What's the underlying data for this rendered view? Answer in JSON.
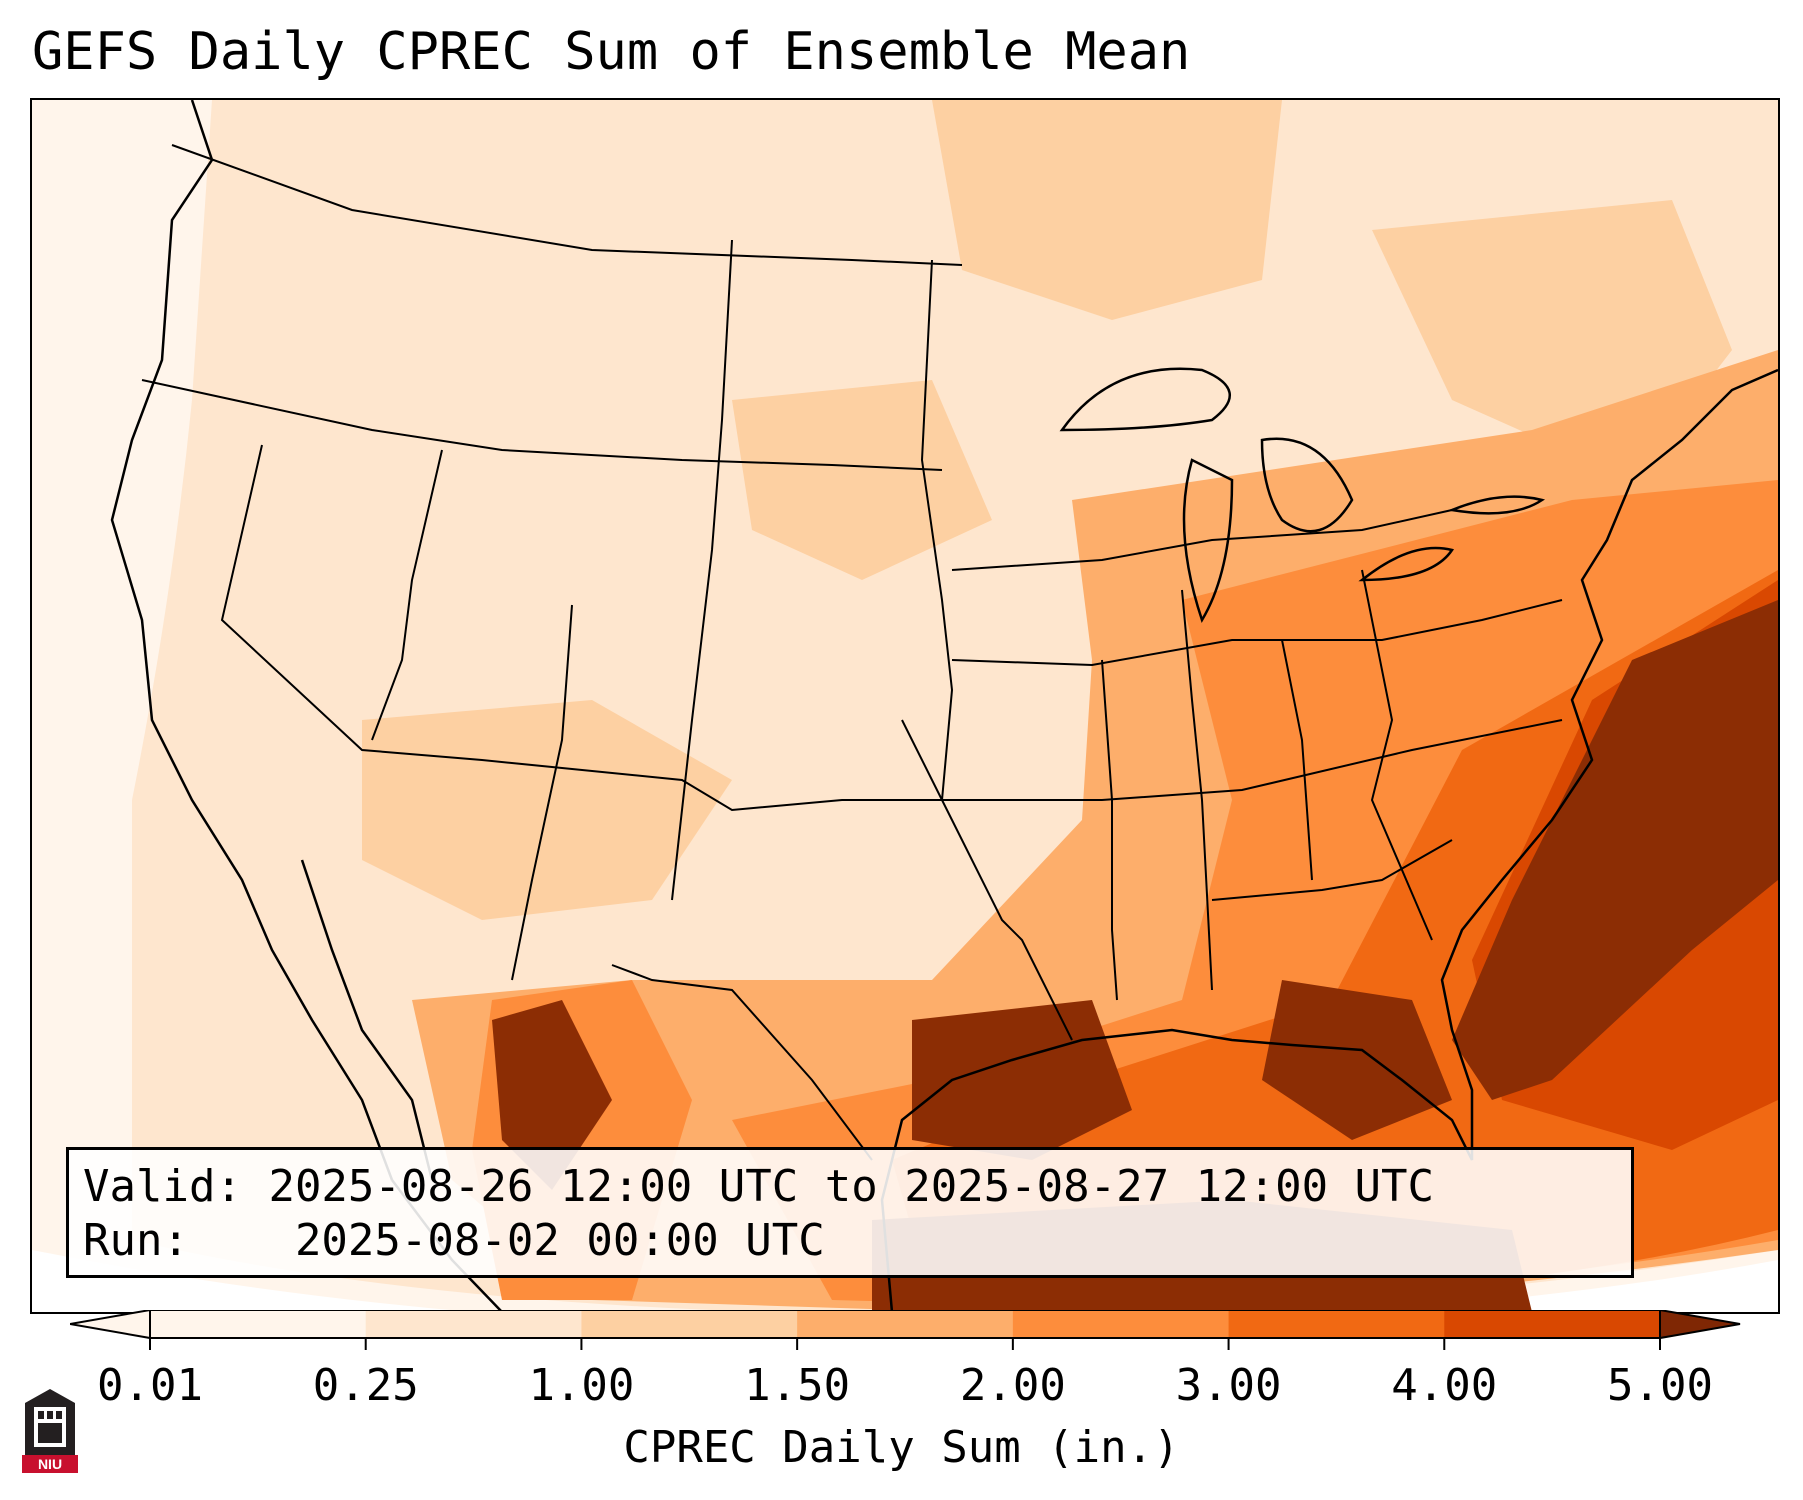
{
  "title": "GEFS Daily CPREC Sum of Ensemble Mean",
  "info": {
    "valid_label": "Valid:",
    "valid_value": "2025-08-26 12:00 UTC to 2025-08-27 12:00 UTC",
    "run_label": "Run:",
    "run_value": "2025-08-02 00:00 UTC"
  },
  "colorbar": {
    "ticks": [
      "0.01",
      "0.25",
      "1.00",
      "1.50",
      "2.00",
      "3.00",
      "4.00",
      "5.00"
    ],
    "label": "CPREC Daily Sum (in.)",
    "colors": [
      "#fff5eb",
      "#fee6ce",
      "#fdd0a2",
      "#fdae6b",
      "#fd8d3c",
      "#f16913",
      "#d94801",
      "#8c2d04"
    ]
  },
  "logo": {
    "text": "NIU",
    "colors": {
      "dark": "#231f20",
      "red": "#c8102e"
    }
  }
}
